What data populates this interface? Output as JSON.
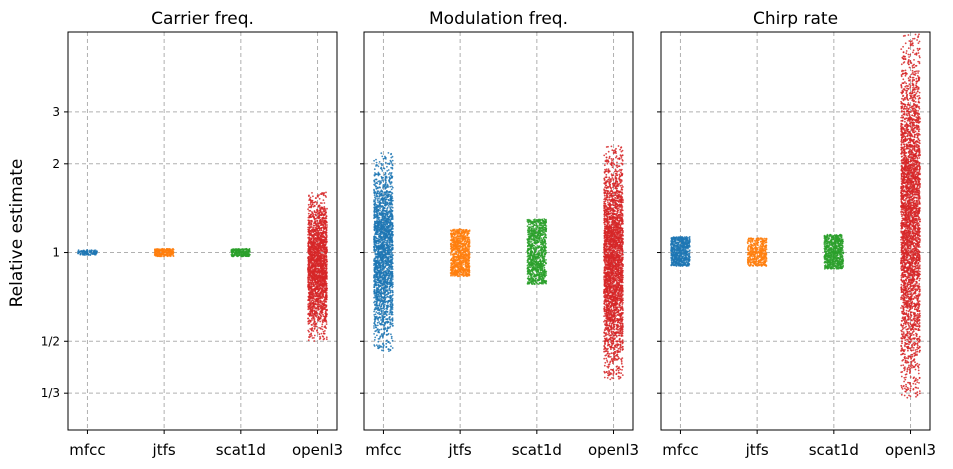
{
  "chart_data": {
    "type": "strip",
    "ylabel": "Relative estimate",
    "yscale": "log2",
    "ylim": [
      0.25,
      5.6
    ],
    "yticks": [
      {
        "value": 0.3333,
        "label": "1/3"
      },
      {
        "value": 0.5,
        "label": "1/2"
      },
      {
        "value": 1,
        "label": "1"
      },
      {
        "value": 2,
        "label": "2"
      },
      {
        "value": 3,
        "label": "3"
      }
    ],
    "categories": [
      "mfcc",
      "jtfs",
      "scat1d",
      "openl3"
    ],
    "colors": [
      "#1f77b4",
      "#ff7f0e",
      "#2ca02c",
      "#d62728"
    ],
    "grid": true,
    "panels": [
      {
        "title": "Carrier freq.",
        "series": [
          {
            "category": "mfcc",
            "min": 0.98,
            "max": 1.02,
            "n": 120
          },
          {
            "category": "jtfs",
            "min": 0.97,
            "max": 1.03,
            "n": 250
          },
          {
            "category": "scat1d",
            "min": 0.97,
            "max": 1.03,
            "n": 250
          },
          {
            "category": "openl3",
            "min": 0.5,
            "max": 1.6,
            "n": 2200
          }
        ]
      },
      {
        "title": "Modulation freq.",
        "series": [
          {
            "category": "mfcc",
            "min": 0.46,
            "max": 2.18,
            "n": 2200
          },
          {
            "category": "jtfs",
            "min": 0.83,
            "max": 1.2,
            "n": 900
          },
          {
            "category": "scat1d",
            "min": 0.78,
            "max": 1.3,
            "n": 1000
          },
          {
            "category": "openl3",
            "min": 0.37,
            "max": 2.3,
            "n": 3000
          }
        ]
      },
      {
        "title": "Chirp rate",
        "series": [
          {
            "category": "mfcc",
            "min": 0.9,
            "max": 1.13,
            "n": 700
          },
          {
            "category": "jtfs",
            "min": 0.9,
            "max": 1.12,
            "n": 450
          },
          {
            "category": "scat1d",
            "min": 0.88,
            "max": 1.15,
            "n": 700
          },
          {
            "category": "openl3",
            "min": 0.32,
            "max": 5.5,
            "n": 3500
          }
        ]
      }
    ]
  }
}
